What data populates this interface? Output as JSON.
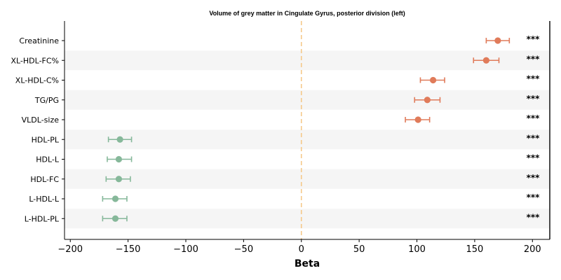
{
  "chart_data": {
    "type": "forest",
    "title": "Volume of grey matter in Cingulate Gyrus, posterior division (left)",
    "xlabel": "Beta",
    "xlim": [
      -205,
      215
    ],
    "xticks": [
      "−200",
      "−150",
      "−100",
      "−50",
      "0",
      "50",
      "100",
      "150",
      "200"
    ],
    "xtick_values": [
      -200,
      -150,
      -100,
      -50,
      0,
      50,
      100,
      150,
      200
    ],
    "reference_line": 0,
    "legend": "none",
    "colors": {
      "positive": "#e07b5a",
      "negative": "#86b89a",
      "reference": "#f5c98a",
      "band": "#f5f5f5"
    },
    "rows": [
      {
        "label": "Creatinine",
        "beta": 170,
        "lo": 160,
        "hi": 180,
        "sig": "***"
      },
      {
        "label": "XL-HDL-FC%",
        "beta": 160,
        "lo": 149,
        "hi": 171,
        "sig": "***"
      },
      {
        "label": "XL-HDL-C%",
        "beta": 114,
        "lo": 103,
        "hi": 124,
        "sig": "***"
      },
      {
        "label": "TG/PG",
        "beta": 109,
        "lo": 98,
        "hi": 120,
        "sig": "***"
      },
      {
        "label": "VLDL-size",
        "beta": 101,
        "lo": 90,
        "hi": 111,
        "sig": "***"
      },
      {
        "label": "HDL-PL",
        "beta": -157,
        "lo": -167,
        "hi": -147,
        "sig": "***"
      },
      {
        "label": "HDL-L",
        "beta": -158,
        "lo": -168,
        "hi": -147,
        "sig": "***"
      },
      {
        "label": "HDL-FC",
        "beta": -158,
        "lo": -169,
        "hi": -148,
        "sig": "***"
      },
      {
        "label": "L-HDL-L",
        "beta": -161,
        "lo": -172,
        "hi": -151,
        "sig": "***"
      },
      {
        "label": "L-HDL-PL",
        "beta": -161,
        "lo": -172,
        "hi": -151,
        "sig": "***"
      }
    ]
  }
}
